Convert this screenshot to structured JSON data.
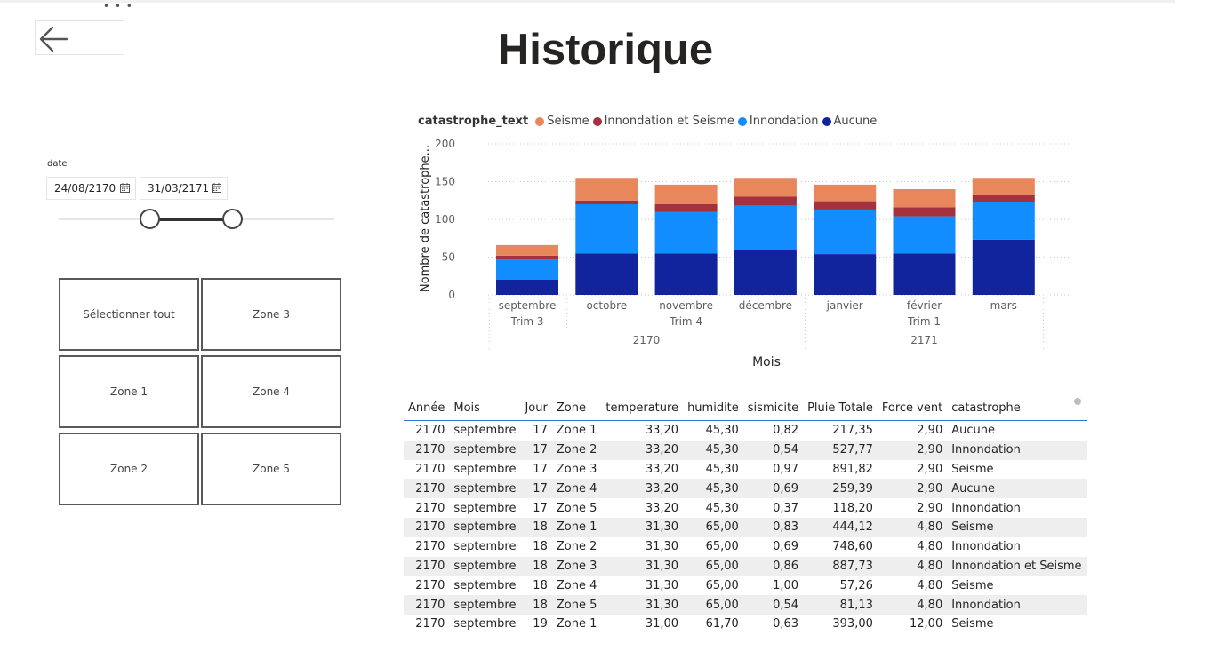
{
  "page": {
    "title": "Historique",
    "more_icon": "more-options-icon",
    "back_icon": "arrow-left-icon"
  },
  "date_slicer": {
    "label": "date",
    "start": "24/08/2170",
    "end": "31/03/2171",
    "calendar_icon": "calendar-icon"
  },
  "zones": {
    "items": [
      "Sélectionner tout",
      "Zone 3",
      "Zone 1",
      "Zone 4",
      "Zone 2",
      "Zone 5"
    ]
  },
  "chart_data": {
    "type": "bar",
    "stacked": true,
    "legend_title": "catastrophe_text",
    "legend_position": "top-left",
    "categories": [
      "septembre",
      "octobre",
      "novembre",
      "décembre",
      "janvier",
      "février",
      "mars"
    ],
    "quarter_groups": [
      {
        "label": "Trim 3",
        "months": [
          "septembre"
        ]
      },
      {
        "label": "Trim 4",
        "months": [
          "octobre",
          "novembre",
          "décembre"
        ]
      },
      {
        "label": "Trim 1",
        "months": [
          "janvier",
          "février",
          "mars"
        ]
      }
    ],
    "year_groups": [
      {
        "label": "2170",
        "months": [
          "septembre",
          "octobre",
          "novembre",
          "décembre"
        ]
      },
      {
        "label": "2171",
        "months": [
          "janvier",
          "février",
          "mars"
        ]
      }
    ],
    "series": [
      {
        "name": "Aucune",
        "color": "#12239e",
        "values": [
          20,
          55,
          55,
          60,
          54,
          55,
          73
        ]
      },
      {
        "name": "Innondation",
        "color": "#118dff",
        "values": [
          27,
          65,
          55,
          58,
          59,
          49,
          50
        ]
      },
      {
        "name": "Innondation et Seisme",
        "color": "#a4313e",
        "values": [
          5,
          5,
          10,
          12,
          11,
          12,
          9
        ]
      },
      {
        "name": "Seisme",
        "color": "#e8875c",
        "values": [
          14,
          30,
          26,
          25,
          22,
          24,
          23
        ]
      }
    ],
    "legend_order": [
      "Seisme",
      "Innondation et Seisme",
      "Innondation",
      "Aucune"
    ],
    "xlabel": "Mois",
    "ylabel": "Nombre de catastrophe...",
    "ylim": [
      0,
      200
    ],
    "yticks": [
      0,
      50,
      100,
      150,
      200
    ],
    "grid": true
  },
  "table": {
    "columns": [
      "Année",
      "Mois",
      "Jour",
      "Zone",
      "temperature",
      "humidite",
      "sismicite",
      "Pluie Totale",
      "Force vent",
      "catastrophe"
    ],
    "rows": [
      [
        "2170",
        "septembre",
        "17",
        "Zone 1",
        "33,20",
        "45,30",
        "0,82",
        "217,35",
        "2,90",
        "Aucune"
      ],
      [
        "2170",
        "septembre",
        "17",
        "Zone 2",
        "33,20",
        "45,30",
        "0,54",
        "527,77",
        "2,90",
        "Innondation"
      ],
      [
        "2170",
        "septembre",
        "17",
        "Zone 3",
        "33,20",
        "45,30",
        "0,97",
        "891,82",
        "2,90",
        "Seisme"
      ],
      [
        "2170",
        "septembre",
        "17",
        "Zone 4",
        "33,20",
        "45,30",
        "0,69",
        "259,39",
        "2,90",
        "Aucune"
      ],
      [
        "2170",
        "septembre",
        "17",
        "Zone 5",
        "33,20",
        "45,30",
        "0,37",
        "118,20",
        "2,90",
        "Innondation"
      ],
      [
        "2170",
        "septembre",
        "18",
        "Zone 1",
        "31,30",
        "65,00",
        "0,83",
        "444,12",
        "4,80",
        "Seisme"
      ],
      [
        "2170",
        "septembre",
        "18",
        "Zone 2",
        "31,30",
        "65,00",
        "0,69",
        "748,60",
        "4,80",
        "Innondation"
      ],
      [
        "2170",
        "septembre",
        "18",
        "Zone 3",
        "31,30",
        "65,00",
        "0,86",
        "887,73",
        "4,80",
        "Innondation et Seisme"
      ],
      [
        "2170",
        "septembre",
        "18",
        "Zone 4",
        "31,30",
        "65,00",
        "1,00",
        "57,26",
        "4,80",
        "Seisme"
      ],
      [
        "2170",
        "septembre",
        "18",
        "Zone 5",
        "31,30",
        "65,00",
        "0,54",
        "81,13",
        "4,80",
        "Innondation"
      ],
      [
        "2170",
        "septembre",
        "19",
        "Zone 1",
        "31,00",
        "61,70",
        "0,63",
        "393,00",
        "12,00",
        "Seisme"
      ]
    ]
  }
}
